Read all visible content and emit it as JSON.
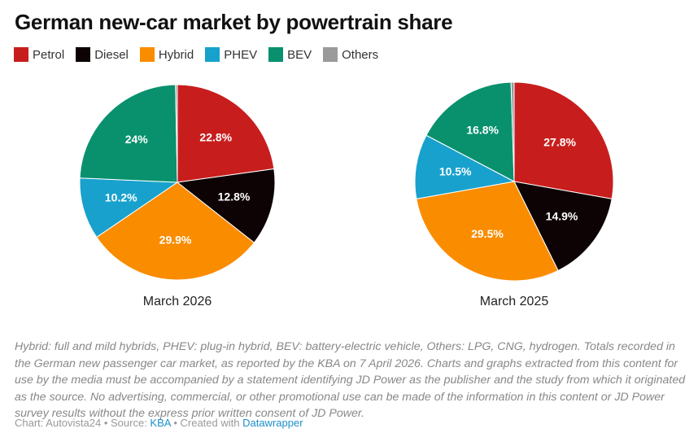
{
  "title": "German new-car market by powertrain share",
  "legend": [
    {
      "label": "Petrol",
      "color": "#c71e1d"
    },
    {
      "label": "Diesel",
      "color": "#0d0204"
    },
    {
      "label": "Hybrid",
      "color": "#fa8c00"
    },
    {
      "label": "PHEV",
      "color": "#18a1cd"
    },
    {
      "label": "BEV",
      "color": "#09916e"
    },
    {
      "label": "Others",
      "color": "#9a9a9a"
    }
  ],
  "chart_data": [
    {
      "type": "pie",
      "title": "March 2026",
      "categories": [
        "Petrol",
        "Diesel",
        "Hybrid",
        "PHEV",
        "BEV",
        "Others"
      ],
      "values": [
        22.8,
        12.8,
        29.9,
        10.2,
        24,
        0.3
      ],
      "labels": [
        "22.8%",
        "12.8%",
        "29.9%",
        "10.2%",
        "24%",
        ""
      ]
    },
    {
      "type": "pie",
      "title": "March 2025",
      "categories": [
        "Petrol",
        "Diesel",
        "Hybrid",
        "PHEV",
        "BEV",
        "Others"
      ],
      "values": [
        27.8,
        14.9,
        29.5,
        10.5,
        16.8,
        0.5
      ],
      "labels": [
        "27.8%",
        "14.9%",
        "29.5%",
        "10.5%",
        "16.8%",
        ""
      ]
    }
  ],
  "notes": "Hybrid: full and mild hybrids, PHEV: plug-in hybrid, BEV: battery-electric vehicle, Others: LPG, CNG, hydrogen. Totals recorded in the German new passenger car market, as reported by the KBA on 7 April 2026. Charts and graphs extracted from this content for use by the media must be accompanied by a statement identifying JD Power as the publisher and the study from which it originated as the source. No advertising, commercial, or other promotional use can be made of the information in this content or JD Power survey results without the express prior written consent of JD Power.",
  "credit": {
    "chart_prefix": "Chart: Autovista24 • Source: ",
    "source_link": "KBA",
    "created_prefix": " • Created with ",
    "tool_link": "Datawrapper"
  }
}
